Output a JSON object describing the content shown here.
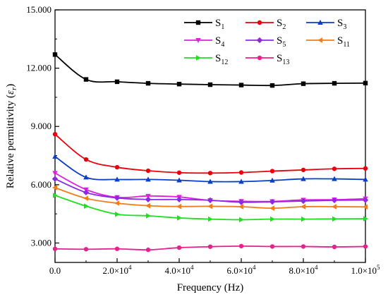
{
  "chart_data": {
    "type": "line",
    "xlabel": "Frequency (Hz)",
    "ylabel_prefix": "Relative permittivity (",
    "ylabel_symbol": "ε",
    "ylabel_subscript": "r",
    "ylabel_suffix": ")",
    "xlim": [
      0,
      100000
    ],
    "ylim": [
      2000,
      15000
    ],
    "x_ticks": [
      {
        "value": 0,
        "label": "0.0"
      },
      {
        "value": 20000,
        "label": "2.0×10",
        "exp": "4"
      },
      {
        "value": 40000,
        "label": "4.0×10",
        "exp": "4"
      },
      {
        "value": 60000,
        "label": "6.0×10",
        "exp": "4"
      },
      {
        "value": 80000,
        "label": "8.0×10",
        "exp": "4"
      },
      {
        "value": 100000,
        "label": "1.0×10",
        "exp": "5"
      }
    ],
    "y_ticks": [
      {
        "value": 3000,
        "label": "3.000"
      },
      {
        "value": 6000,
        "label": "6.000"
      },
      {
        "value": 9000,
        "label": "9.000"
      },
      {
        "value": 12000,
        "label": "12.000"
      },
      {
        "value": 15000,
        "label": "15.000"
      }
    ],
    "grid": false,
    "legend_position": "top-right",
    "x": [
      0,
      10000,
      20000,
      30000,
      40000,
      50000,
      60000,
      70000,
      80000,
      90000,
      100000
    ],
    "series": [
      {
        "name": "S",
        "sub": "1",
        "color": "#000000",
        "marker": "square",
        "values": [
          12700,
          11420,
          11300,
          11220,
          11180,
          11150,
          11130,
          11110,
          11200,
          11220,
          11230
        ]
      },
      {
        "name": "S",
        "sub": "2",
        "color": "#e8000b",
        "marker": "circle",
        "values": [
          8600,
          7300,
          6900,
          6720,
          6620,
          6600,
          6630,
          6700,
          6760,
          6820,
          6840
        ]
      },
      {
        "name": "S",
        "sub": "3",
        "color": "#0a3ec8",
        "marker": "triangle-up",
        "values": [
          7450,
          6380,
          6270,
          6270,
          6230,
          6160,
          6160,
          6220,
          6300,
          6300,
          6270
        ]
      },
      {
        "name": "S",
        "sub": "4",
        "color": "#e020e0",
        "marker": "triangle-down",
        "values": [
          6600,
          5750,
          5350,
          5420,
          5370,
          5190,
          5150,
          5140,
          5220,
          5230,
          5280
        ]
      },
      {
        "name": "S",
        "sub": "5",
        "color": "#8a2be2",
        "marker": "diamond",
        "values": [
          6300,
          5600,
          5320,
          5240,
          5240,
          5200,
          5100,
          5120,
          5160,
          5200,
          5210
        ]
      },
      {
        "name": "S",
        "sub": "11",
        "color": "#f07d1a",
        "marker": "triangle-left",
        "values": [
          5850,
          5300,
          5050,
          4920,
          4880,
          4890,
          4870,
          4790,
          4870,
          4870,
          4860
        ]
      },
      {
        "name": "S",
        "sub": "12",
        "color": "#1ee01e",
        "marker": "triangle-right",
        "values": [
          5450,
          4900,
          4480,
          4400,
          4290,
          4230,
          4200,
          4230,
          4230,
          4240,
          4250
        ]
      },
      {
        "name": "S",
        "sub": "13",
        "color": "#e8208a",
        "marker": "circle",
        "values": [
          2700,
          2680,
          2700,
          2650,
          2760,
          2810,
          2840,
          2820,
          2820,
          2800,
          2820
        ]
      }
    ]
  }
}
